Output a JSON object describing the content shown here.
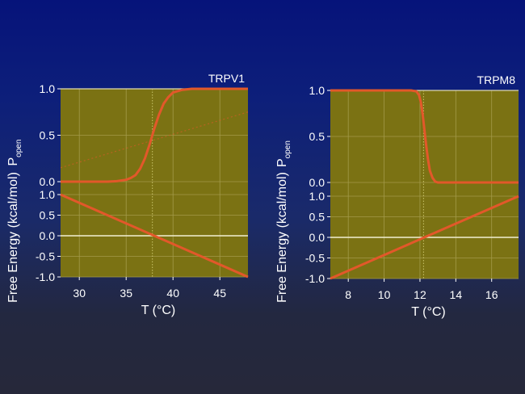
{
  "chart_data": [
    {
      "type": "line",
      "title": "TRPV1",
      "xlabel": "T (°C)",
      "xlabel_parts": {
        "pre": "T (",
        "deg": "o",
        "post": "C)"
      },
      "ylabel_top": {
        "main": "P",
        "sub": "open"
      },
      "ylabel_bottom": "Free Energy (kcal/mol)",
      "xlim": [
        28,
        48
      ],
      "xticks": [
        30,
        35,
        40,
        45
      ],
      "xtick_labels": [
        "30",
        "35",
        "40",
        "45"
      ],
      "top_ylim": [
        0,
        1
      ],
      "top_yticks": [
        0,
        0.5,
        1
      ],
      "top_ytick_labels": [
        "0.0",
        "0.5",
        "1.0"
      ],
      "bottom_ylim": [
        -1,
        1
      ],
      "bottom_yticks": [
        -1,
        -0.5,
        0,
        0.5,
        1
      ],
      "bottom_ytick_labels": [
        "-1.0",
        "-0.5",
        "0.0",
        "0.5",
        "1.0"
      ],
      "grid": true,
      "midpoint_T": 37.8,
      "popen": {
        "x": [
          28,
          29,
          30,
          31,
          32,
          33,
          34,
          35,
          35.5,
          36,
          36.5,
          37,
          37.5,
          38,
          38.5,
          39,
          39.5,
          40,
          41,
          42,
          43,
          44,
          45,
          46,
          47,
          48
        ],
        "y": [
          0,
          0,
          0,
          0,
          0,
          0,
          0.005,
          0.02,
          0.04,
          0.07,
          0.14,
          0.25,
          0.4,
          0.57,
          0.72,
          0.84,
          0.91,
          0.96,
          0.99,
          1,
          1,
          1,
          1,
          1,
          1,
          1
        ]
      },
      "popen_dotted": {
        "x": [
          28,
          48
        ],
        "y": [
          0.15,
          0.75
        ]
      },
      "free_energy": {
        "x": [
          28,
          48
        ],
        "y": [
          1.0,
          -1.0
        ]
      }
    },
    {
      "type": "line",
      "title": "TRPM8",
      "xlabel": "T (°C)",
      "xlabel_parts": {
        "pre": "T (",
        "deg": "o",
        "post": "C)"
      },
      "ylabel_top": {
        "main": "P",
        "sub": "open"
      },
      "ylabel_bottom": "Free Energy (kcal/mol)",
      "xlim": [
        7,
        17.5
      ],
      "xticks": [
        8,
        10,
        12,
        14,
        16
      ],
      "xtick_labels": [
        "8",
        "10",
        "12",
        "14",
        "16"
      ],
      "top_ylim": [
        0,
        1
      ],
      "top_yticks": [
        0,
        0.5,
        1
      ],
      "top_ytick_labels": [
        "0.0",
        "0.5",
        "1.0"
      ],
      "bottom_ylim": [
        -1,
        1
      ],
      "bottom_yticks": [
        -1,
        -0.5,
        0,
        0.5,
        1
      ],
      "bottom_ytick_labels": [
        "-1.0",
        "-0.5",
        "0.0",
        "0.5",
        "1.0"
      ],
      "grid": true,
      "midpoint_T": 12.2,
      "popen": {
        "x": [
          7,
          8,
          9,
          10,
          11,
          11.5,
          11.8,
          11.95,
          12.05,
          12.15,
          12.25,
          12.35,
          12.45,
          12.55,
          12.7,
          12.85,
          13,
          14,
          15,
          16,
          17,
          17.5
        ],
        "y": [
          1,
          1,
          1,
          1,
          1,
          1,
          0.99,
          0.95,
          0.87,
          0.74,
          0.57,
          0.4,
          0.25,
          0.13,
          0.05,
          0.01,
          0,
          0,
          0,
          0,
          0,
          0
        ]
      },
      "free_energy": {
        "x": [
          7,
          17.5
        ],
        "y": [
          -1.0,
          1.0
        ]
      }
    }
  ],
  "colors": {
    "plot_bg": "#7b7213",
    "curve": "#e2582a",
    "grid": "#a39a4a",
    "zero_line": "#f2efd2"
  }
}
